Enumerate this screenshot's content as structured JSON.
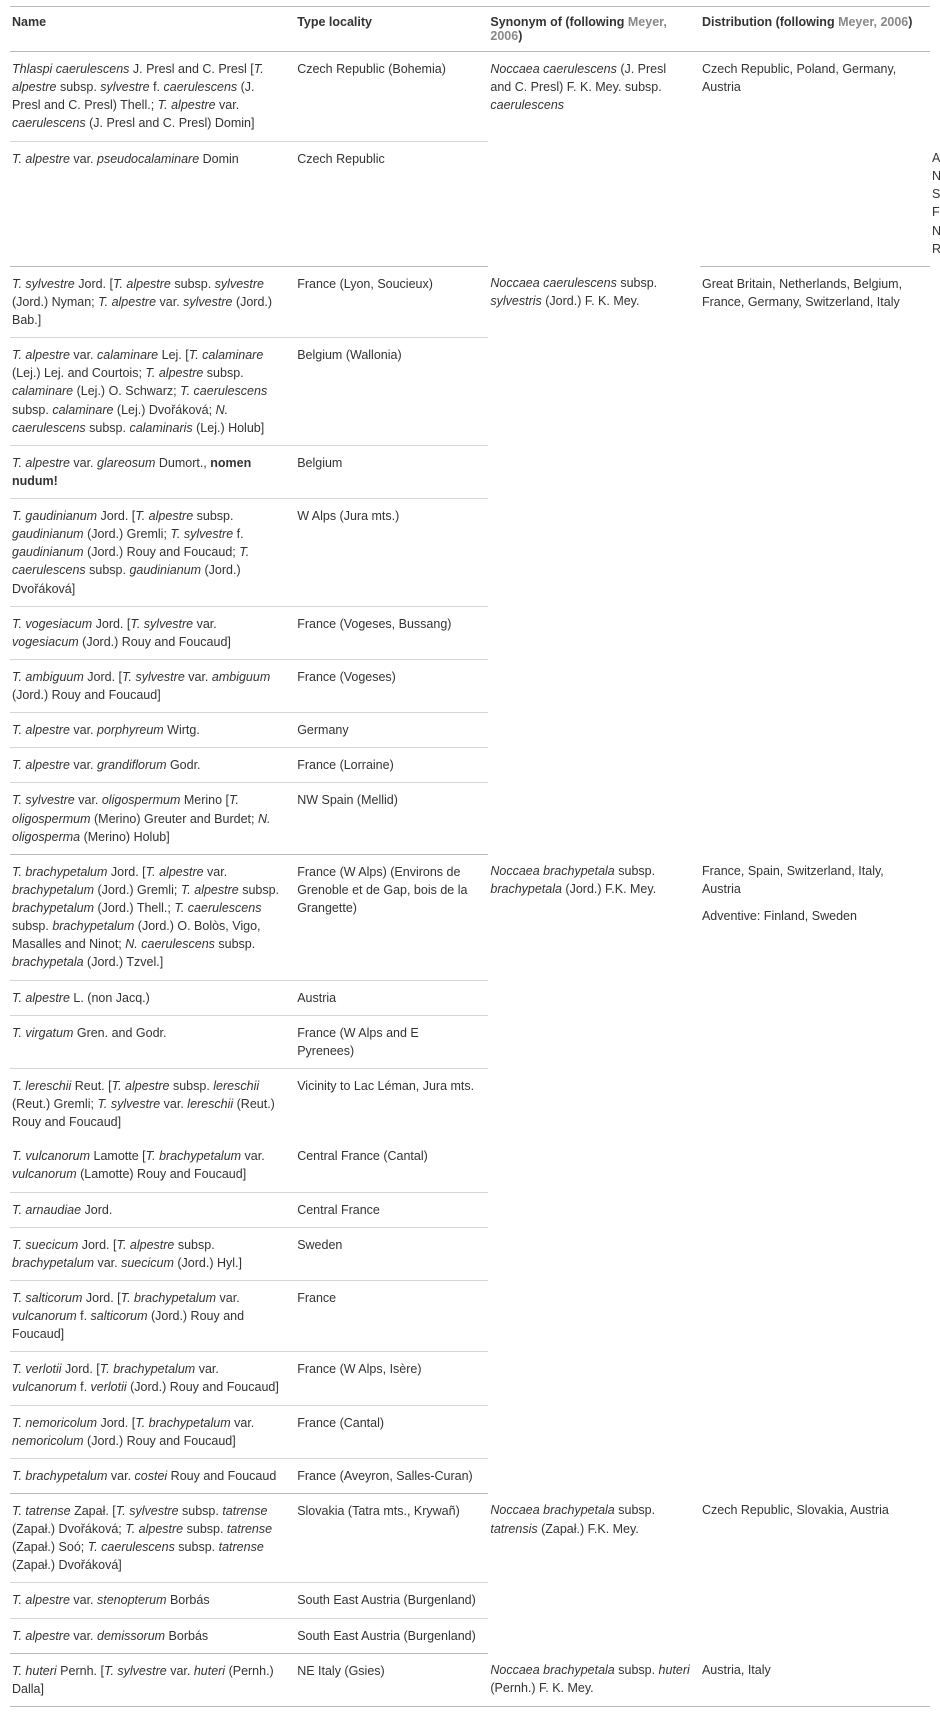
{
  "headers": {
    "name": "Name",
    "type_locality": "Type locality",
    "synonym_prefix": "Synonym of (following ",
    "synonym_link": "Meyer, 2006",
    "synonym_suffix": ")",
    "distribution_prefix": "Distribution (following ",
    "distribution_link": "Meyer, 2006",
    "distribution_suffix": ")"
  },
  "groups": [
    {
      "synonym": "<span class=\"i\">Noccaea caerulescens</span> (J. Presl and C. Presl) F. K. Mey. subsp. <span class=\"i\">caerulescens</span>",
      "distribution": "Czech Republic, Poland, Germany, Austria",
      "rows": [
        {
          "name": "<span class=\"i\">Thlaspi caerulescens</span> J. Presl and C. Presl [<span class=\"i\">T. alpestre</span> subsp. <span class=\"i\">sylvestre</span> f. <span class=\"i\">caerulescens</span> (J. Presl and C. Presl) Thell.; <span class=\"i\">T. alpestre</span> var. <span class=\"i\">caerulescens</span> (J. Presl and C. Presl) Domin]",
          "loc": "Czech Republic (Bohemia)",
          "dist_extra": ""
        },
        {
          "name": "<span class=\"i\">T. alpestre</span> var. <span class=\"i\">pseudocalaminare</span> Domin",
          "loc": "Czech Republic",
          "dist_extra": "Adventive: Norway, Sweden, Finland, NW Russia"
        }
      ]
    },
    {
      "synonym": "<span class=\"i\">Noccaea caerulescens</span> subsp. <span class=\"i\">sylvestris</span> (Jord.) F. K. Mey.",
      "distribution": "Great Britain, Netherlands, Belgium, France, Germany, Switzerland, Italy",
      "rows": [
        {
          "name": "<span class=\"i\">T. sylvestre</span> Jord. [<span class=\"i\">T. alpestre</span> subsp. <span class=\"i\">sylvestre</span> (Jord.) Nyman; <span class=\"i\">T. alpestre</span> var. <span class=\"i\">sylvestre</span> (Jord.) Bab.]",
          "loc": "France (Lyon, Soucieux)"
        },
        {
          "name": "<span class=\"i\">T. alpestre</span> var. <span class=\"i\">calaminare</span> Lej. [<span class=\"i\">T. calaminare</span> (Lej.) Lej. and Courtois; <span class=\"i\">T. alpestre</span> subsp. <span class=\"i\">calaminare</span> (Lej.) O. Schwarz; <span class=\"i\">T. caerulescens</span> subsp. <span class=\"i\">calaminare</span> (Lej.) Dvořáková; <span class=\"i\">N. caerulescens</span> subsp. <span class=\"i\">calaminaris</span> (Lej.) Holub]",
          "loc": "Belgium (Wallonia)"
        },
        {
          "name": "<span class=\"i\">T. alpestre</span> var. <span class=\"i\">glareosum</span> Dumort., <span class=\"b\">nomen nudum!</span>",
          "loc": "Belgium"
        },
        {
          "name": "<span class=\"i\">T. gaudinianum</span> Jord. [<span class=\"i\">T. alpestre</span> subsp. <span class=\"i\">gaudinianum</span> (Jord.) Gremli; <span class=\"i\">T. sylvestre</span> f. <span class=\"i\">gaudinianum</span> (Jord.) Rouy and Foucaud; <span class=\"i\">T. caerulescens</span> subsp. <span class=\"i\">gaudinianum</span> (Jord.) Dvořáková]",
          "loc": "W Alps (Jura mts.)"
        },
        {
          "name": "<span class=\"i\">T. vogesiacum</span> Jord. [<span class=\"i\">T. sylvestre</span> var. <span class=\"i\">vogesiacum</span> (Jord.) Rouy and Foucaud]",
          "loc": "France (Vogeses, Bussang)"
        },
        {
          "name": "<span class=\"i\">T. ambiguum</span> Jord. [<span class=\"i\">T. sylvestre</span> var. <span class=\"i\">ambiguum</span> (Jord.) Rouy and Foucaud]",
          "loc": "France (Vogeses)"
        },
        {
          "name": "<span class=\"i\">T. alpestre</span> var. <span class=\"i\">porphyreum</span> Wirtg.",
          "loc": "Germany"
        },
        {
          "name": "<span class=\"i\">T. alpestre</span> var. <span class=\"i\">grandiflorum</span> Godr.",
          "loc": "France (Lorraine)"
        },
        {
          "name": "<span class=\"i\">T. sylvestre</span> var. <span class=\"i\">oligospermum</span> Merino [<span class=\"i\">T. oligospermum</span> (Merino) Greuter and Burdet; <span class=\"i\">N. oligosperma</span> (Merino) Holub]",
          "loc": "NW Spain (Mellid)"
        }
      ]
    },
    {
      "synonym": "<span class=\"i\">Noccaea brachypetala</span> subsp. <span class=\"i\">brachypetala</span> (Jord.) F.K. Mey.",
      "distribution": "France, Spain, Switzerland, Italy, Austria<div class=\"gap\"></div>Adventive: Finland, Sweden",
      "rows": [
        {
          "name": "<span class=\"i\">T. brachypetalum</span> Jord. [<span class=\"i\">T. alpestre</span> var. <span class=\"i\">brachypetalum</span> (Jord.) Gremli; <span class=\"i\">T. alpestre</span> subsp. <span class=\"i\">brachypetalum</span> (Jord.) Thell.; <span class=\"i\">T. caerulescens</span> subsp. <span class=\"i\">brachypetalum</span> (Jord.) O. Bolòs, Vigo, Masalles and Ninot; <span class=\"i\">N. caerulescens</span> subsp. <span class=\"i\">brachypetala</span> (Jord.) Tzvel.]",
          "loc": "France (W Alps) (Environs de Grenoble et de Gap, bois de la Grangette)"
        },
        {
          "name": "<span class=\"i\">T. alpestre</span> L. (non Jacq.)",
          "loc": "Austria"
        },
        {
          "name": "<span class=\"i\">T. virgatum</span> Gren. and Godr.",
          "loc": "France (W Alps and E Pyrenees)"
        },
        {
          "name": "<span class=\"i\">T. lereschii</span> Reut. [<span class=\"i\">T. alpestre</span> subsp. <span class=\"i\">lereschii</span> (Reut.) Gremli; <span class=\"i\">T. sylvestre</span> var. <span class=\"i\">lereschii</span> (Reut.) Rouy and Foucaud]",
          "loc": "Vicinity to Lac Léman, Jura mts.",
          "noborder": true
        },
        {
          "name": "<span class=\"i\">T. vulcanorum</span> Lamotte [<span class=\"i\">T. brachypetalum</span> var. <span class=\"i\">vulcanorum</span> (Lamotte) Rouy and Foucaud]",
          "loc": "Central France (Cantal)"
        },
        {
          "name": "<span class=\"i\">T. arnaudiae</span> Jord.",
          "loc": "Central France"
        },
        {
          "name": "<span class=\"i\">T. suecicum</span> Jord. [<span class=\"i\">T. alpestre</span> subsp. <span class=\"i\">brachypetalum</span> var. <span class=\"i\">suecicum</span> (Jord.) Hyl.]",
          "loc": "Sweden"
        },
        {
          "name": "<span class=\"i\">T. salticorum</span> Jord. [<span class=\"i\">T. brachypetalum</span> var. <span class=\"i\">vulcanorum</span> f. <span class=\"i\">salticorum</span> (Jord.) Rouy and Foucaud]",
          "loc": "France"
        },
        {
          "name": "<span class=\"i\">T. verlotii</span> Jord. [<span class=\"i\">T. brachypetalum</span> var. <span class=\"i\">vulcanorum</span> f. <span class=\"i\">verlotii</span> (Jord.) Rouy and Foucaud]",
          "loc": "France (W Alps, Isère)"
        },
        {
          "name": "<span class=\"i\">T. nemoricolum</span> Jord. [<span class=\"i\">T. brachypetalum</span> var. <span class=\"i\">nemoricolum</span> (Jord.) Rouy and Foucaud]",
          "loc": "France (Cantal)"
        },
        {
          "name": "<span class=\"i\">T. brachypetalum</span> var. <span class=\"i\">costei</span> Rouy and Foucaud",
          "loc": "France (Aveyron, Salles-Curan)"
        }
      ]
    },
    {
      "synonym": "<span class=\"i\">Noccaea brachypetala</span> subsp. <span class=\"i\">tatrensis</span> (Zapał.) F.K. Mey.",
      "distribution": "Czech Republic, Slovakia, Austria",
      "rows": [
        {
          "name": "<span class=\"i\">T. tatrense</span> Zapał. [<span class=\"i\">T. sylvestre</span> subsp. <span class=\"i\">tatrense</span> (Zapał.) Dvořáková; <span class=\"i\">T. alpestre</span> subsp. <span class=\"i\">tatrense</span> (Zapał.) Soó; <span class=\"i\">T. caerulescens</span> subsp. <span class=\"i\">tatrense</span> (Zapał.) Dvořáková]",
          "loc": "Slovakia (Tatra mts., Krywañ)"
        },
        {
          "name": "<span class=\"i\">T. alpestre</span> var. <span class=\"i\">stenopterum</span> Borbás",
          "loc": "South East Austria (Burgenland)"
        },
        {
          "name": "<span class=\"i\">T. alpestre</span> var. <span class=\"i\">demissorum</span> Borbás",
          "loc": "South East Austria (Burgenland)"
        }
      ]
    },
    {
      "synonym": "<span class=\"i\">Noccaea brachypetala</span> subsp. <span class=\"i\">huteri</span> (Pernh.) F. K. Mey.",
      "distribution": "Austria, Italy",
      "rows": [
        {
          "name": "<span class=\"i\">T. huteri</span> Pernh. [<span class=\"i\">T. sylvestre</span> var. <span class=\"i\">huteri</span> (Pernh.) Dalla]",
          "loc": "NE Italy (Gsies)"
        }
      ]
    }
  ]
}
